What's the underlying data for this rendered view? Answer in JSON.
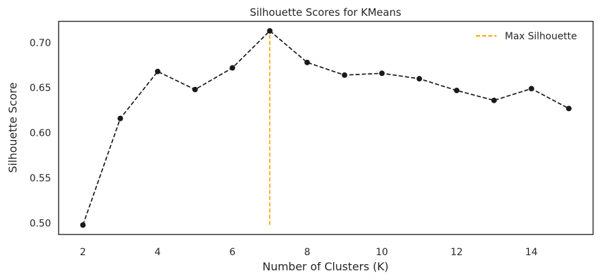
{
  "chart_data": {
    "type": "line",
    "title": "Silhouette Scores for KMeans",
    "xlabel": "Number of Clusters (K)",
    "ylabel": "Silhouette Score",
    "xlim": [
      1.35,
      15.65
    ],
    "ylim": [
      0.4875,
      0.7235
    ],
    "x_ticks": [
      2,
      4,
      6,
      8,
      10,
      12,
      14
    ],
    "x_tick_labels": [
      "2",
      "4",
      "6",
      "8",
      "10",
      "12",
      "14"
    ],
    "y_ticks": [
      0.5,
      0.55,
      0.6,
      0.65,
      0.7
    ],
    "y_tick_labels": [
      "0.50",
      "0.55",
      "0.60",
      "0.65",
      "0.70"
    ],
    "grid": false,
    "legend_position": "top-right",
    "series": [
      {
        "color": "#1a1a1a",
        "line_style": "dashed",
        "marker": "circle",
        "x": [
          2,
          3,
          4,
          5,
          6,
          7,
          8,
          9,
          10,
          11,
          12,
          13,
          14,
          15
        ],
        "y": [
          0.498,
          0.616,
          0.668,
          0.648,
          0.672,
          0.713,
          0.678,
          0.664,
          0.666,
          0.66,
          0.647,
          0.636,
          0.649,
          0.627
        ]
      }
    ],
    "reference_lines": [
      {
        "name": "Max Silhouette",
        "orientation": "vertical",
        "x": 7,
        "y_from": 0.498,
        "y_to": 0.713,
        "color": "#FFA500",
        "line_style": "dashed"
      }
    ]
  }
}
